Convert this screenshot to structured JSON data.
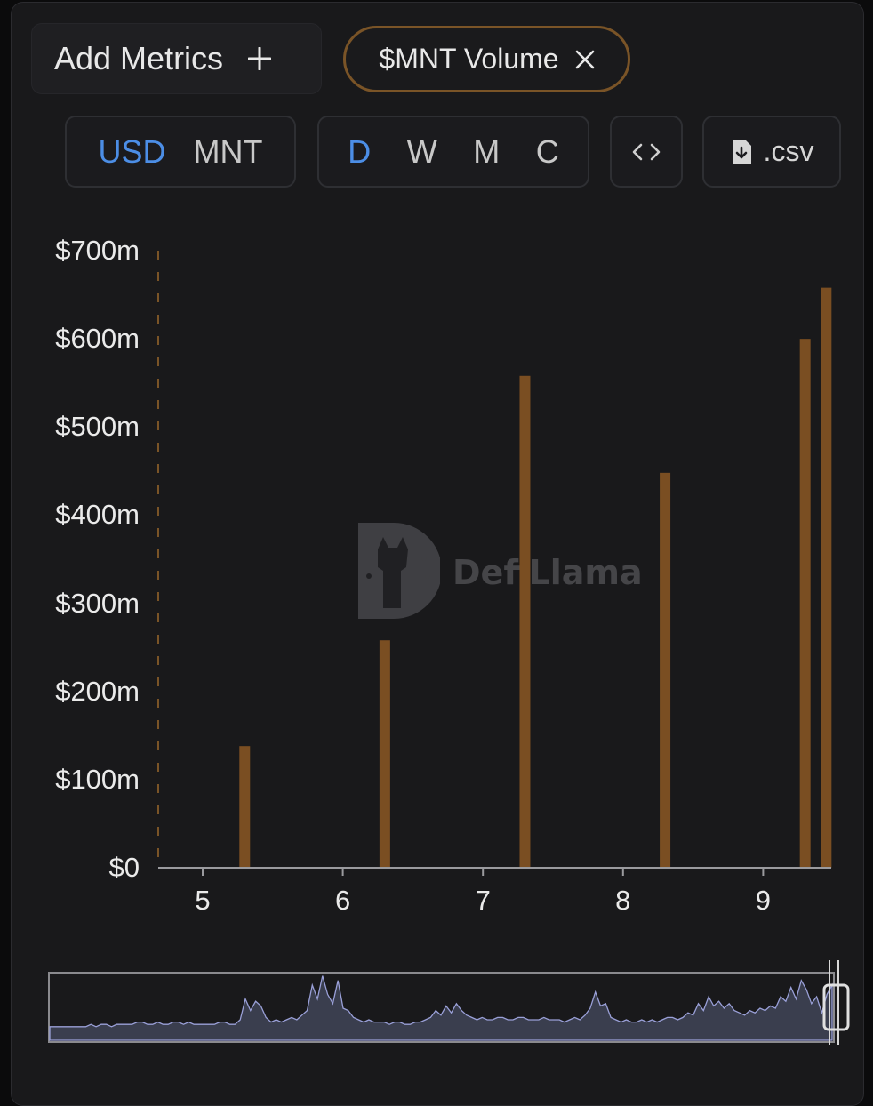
{
  "toolbar": {
    "add_metrics_label": "Add Metrics",
    "add_icon": "plus-icon",
    "metric_chip_label": "$MNT Volume",
    "remove_icon": "close-icon",
    "currency_options": [
      "USD",
      "MNT"
    ],
    "currency_selected": "USD",
    "period_options": [
      "D",
      "W",
      "M",
      "C"
    ],
    "period_selected": "D",
    "embed_icon": "code-icon",
    "csv_label": ".csv",
    "csv_icon": "file-download-icon"
  },
  "watermark": {
    "text": "DefiLlama"
  },
  "colors": {
    "accent": "#4c8ee6",
    "bar": "#7a4e22",
    "chip_border": "#7a5427",
    "background": "#19191b"
  },
  "chart_data": {
    "type": "bar",
    "title": "",
    "xlabel": "",
    "ylabel": "",
    "series": [
      {
        "x": [
          5.3,
          6.3,
          7.3,
          8.3,
          9.3,
          9.45
        ],
        "values": [
          138,
          258,
          558,
          448,
          600,
          658
        ]
      }
    ],
    "x_ticks": [
      "5",
      "6",
      "7",
      "8",
      "9"
    ],
    "x_tick_values": [
      5,
      6,
      7,
      8,
      9
    ],
    "xlim": [
      4.7,
      9.5
    ],
    "y_ticks": [
      "$0",
      "$100m",
      "$200m",
      "$300m",
      "$400m",
      "$500m",
      "$600m",
      "$700m"
    ],
    "y_tick_values": [
      0,
      100,
      200,
      300,
      400,
      500,
      600,
      700
    ],
    "ylim": [
      0,
      700
    ],
    "unit": "USD (millions)",
    "grid": false,
    "legend": "none"
  },
  "overview": {
    "values": [
      2,
      2,
      2,
      2,
      2,
      2,
      2,
      2,
      3,
      2,
      3,
      3,
      2,
      3,
      3,
      3,
      3,
      4,
      4,
      3,
      3,
      4,
      3,
      3,
      4,
      4,
      3,
      4,
      3,
      3,
      3,
      3,
      3,
      4,
      4,
      3,
      3,
      5,
      14,
      9,
      13,
      11,
      6,
      4,
      5,
      4,
      5,
      6,
      5,
      7,
      9,
      20,
      14,
      24,
      16,
      12,
      22,
      10,
      9,
      6,
      5,
      4,
      5,
      4,
      4,
      4,
      3,
      4,
      4,
      3,
      3,
      4,
      4,
      5,
      6,
      9,
      7,
      11,
      8,
      12,
      9,
      7,
      6,
      5,
      6,
      5,
      5,
      6,
      6,
      5,
      5,
      6,
      6,
      5,
      5,
      5,
      6,
      5,
      5,
      5,
      4,
      5,
      6,
      5,
      7,
      10,
      17,
      11,
      12,
      6,
      5,
      4,
      5,
      4,
      4,
      5,
      4,
      5,
      4,
      5,
      6,
      6,
      5,
      6,
      8,
      7,
      12,
      9,
      15,
      11,
      13,
      10,
      12,
      9,
      8,
      7,
      9,
      8,
      10,
      9,
      11,
      10,
      15,
      13,
      19,
      14,
      22,
      18,
      12,
      15,
      8,
      16,
      20
    ]
  }
}
